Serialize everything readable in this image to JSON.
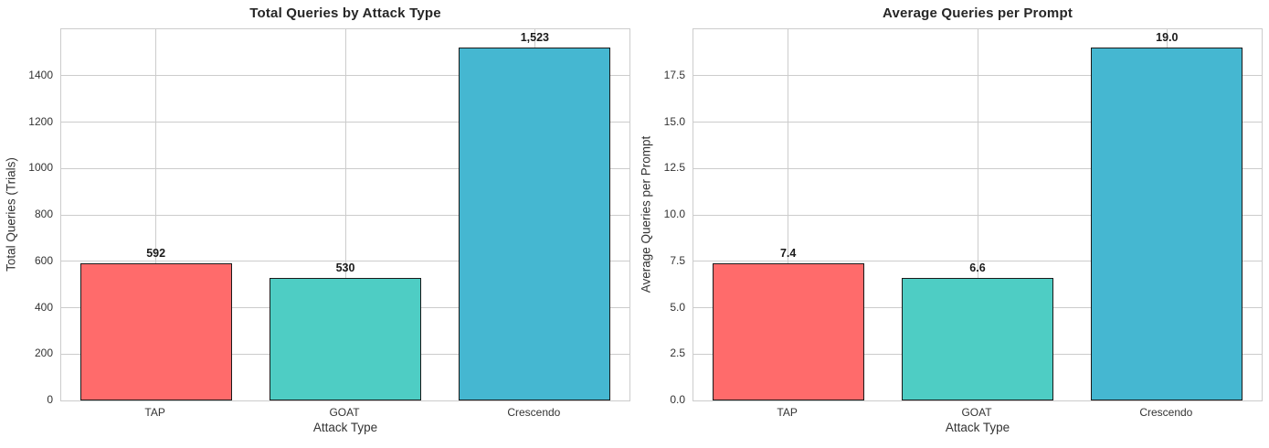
{
  "colors": {
    "bar_tap": "#FF6B6B",
    "bar_goat": "#4ECDC4",
    "bar_crescendo": "#45B7D1",
    "bar_edge": "#1a1a1a",
    "grid": "#cccccc",
    "title_text": "#262626",
    "axis_text": "#333333"
  },
  "chart_data": [
    {
      "type": "bar",
      "title": "Total Queries by Attack Type",
      "xlabel": "Attack Type",
      "ylabel": "Total Queries (Trials)",
      "categories": [
        "TAP",
        "GOAT",
        "Crescendo"
      ],
      "values": [
        592,
        530,
        1523
      ],
      "value_labels": [
        "592",
        "530",
        "1,523"
      ],
      "bar_colors": [
        "#FF6B6B",
        "#4ECDC4",
        "#45B7D1"
      ],
      "ylim": [
        0,
        1600
      ],
      "yticks": [
        0,
        200,
        400,
        600,
        800,
        1000,
        1200,
        1400
      ],
      "ytick_labels": [
        "0",
        "200",
        "400",
        "600",
        "800",
        "1000",
        "1200",
        "1400"
      ],
      "grid": true,
      "legend": null,
      "bar_width_fraction": 0.8
    },
    {
      "type": "bar",
      "title": "Average Queries per Prompt",
      "xlabel": "Attack Type",
      "ylabel": "Average Queries per Prompt",
      "categories": [
        "TAP",
        "GOAT",
        "Crescendo"
      ],
      "values": [
        7.4,
        6.6,
        19.0
      ],
      "value_labels": [
        "7.4",
        "6.6",
        "19.0"
      ],
      "bar_colors": [
        "#FF6B6B",
        "#4ECDC4",
        "#45B7D1"
      ],
      "ylim": [
        0,
        20
      ],
      "yticks": [
        0.0,
        2.5,
        5.0,
        7.5,
        10.0,
        12.5,
        15.0,
        17.5
      ],
      "ytick_labels": [
        "0.0",
        "2.5",
        "5.0",
        "7.5",
        "10.0",
        "12.5",
        "15.0",
        "17.5"
      ],
      "grid": true,
      "legend": null,
      "bar_width_fraction": 0.8
    }
  ]
}
